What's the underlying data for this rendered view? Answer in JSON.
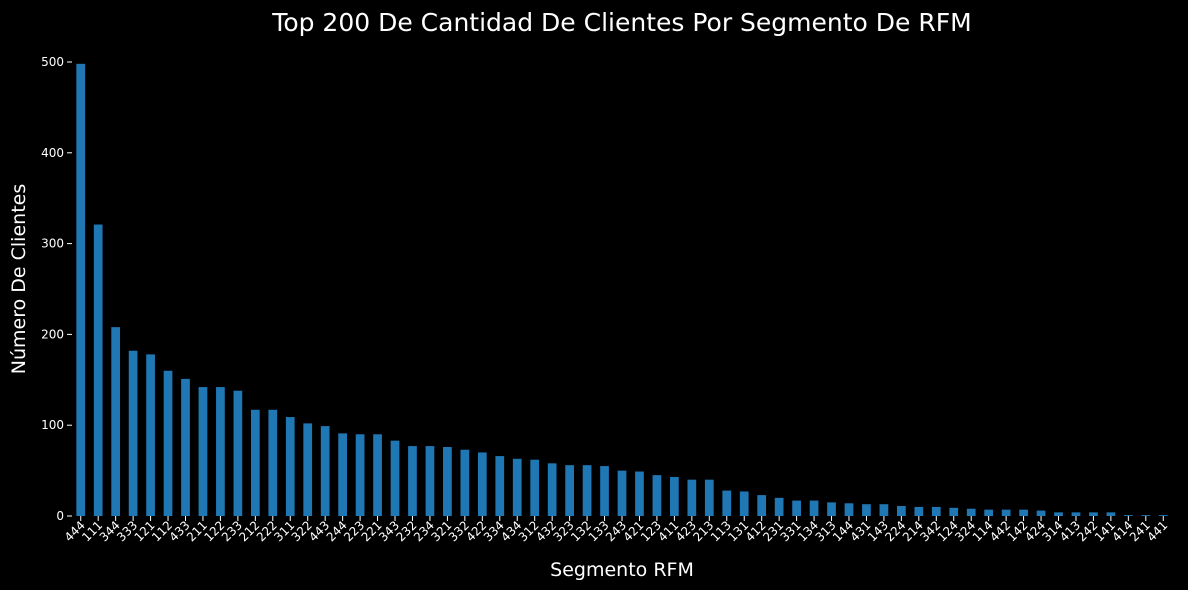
{
  "chart_data": {
    "type": "bar",
    "title": "Top 200 De  Cantidad De Clientes Por Segmento De RFM",
    "xlabel": "Segmento RFM",
    "ylabel": "Número De Clientes",
    "ylim": [
      0,
      500
    ],
    "yticks": [
      0,
      100,
      200,
      300,
      400,
      500
    ],
    "categories": [
      "444",
      "111",
      "344",
      "333",
      "121",
      "112",
      "433",
      "211",
      "122",
      "233",
      "212",
      "222",
      "311",
      "322",
      "443",
      "244",
      "223",
      "221",
      "343",
      "232",
      "234",
      "321",
      "332",
      "422",
      "334",
      "434",
      "312",
      "432",
      "323",
      "132",
      "133",
      "243",
      "421",
      "123",
      "411",
      "423",
      "213",
      "113",
      "131",
      "412",
      "231",
      "331",
      "134",
      "313",
      "144",
      "431",
      "143",
      "224",
      "214",
      "342",
      "124",
      "324",
      "114",
      "442",
      "142",
      "424",
      "314",
      "413",
      "242",
      "141",
      "414",
      "241",
      "441"
    ],
    "values": [
      498,
      321,
      208,
      182,
      178,
      160,
      151,
      142,
      142,
      138,
      117,
      117,
      109,
      102,
      99,
      91,
      90,
      90,
      83,
      77,
      77,
      76,
      73,
      70,
      66,
      63,
      62,
      58,
      56,
      56,
      55,
      50,
      49,
      45,
      43,
      40,
      40,
      28,
      27,
      23,
      20,
      17,
      17,
      15,
      14,
      13,
      13,
      11,
      10,
      10,
      9,
      8,
      7,
      7,
      7,
      6,
      4,
      4,
      4,
      4,
      1,
      1,
      1
    ],
    "grid": false,
    "bar_color": "#1f77b4",
    "background": "#000000",
    "text_color": "#ffffff"
  }
}
